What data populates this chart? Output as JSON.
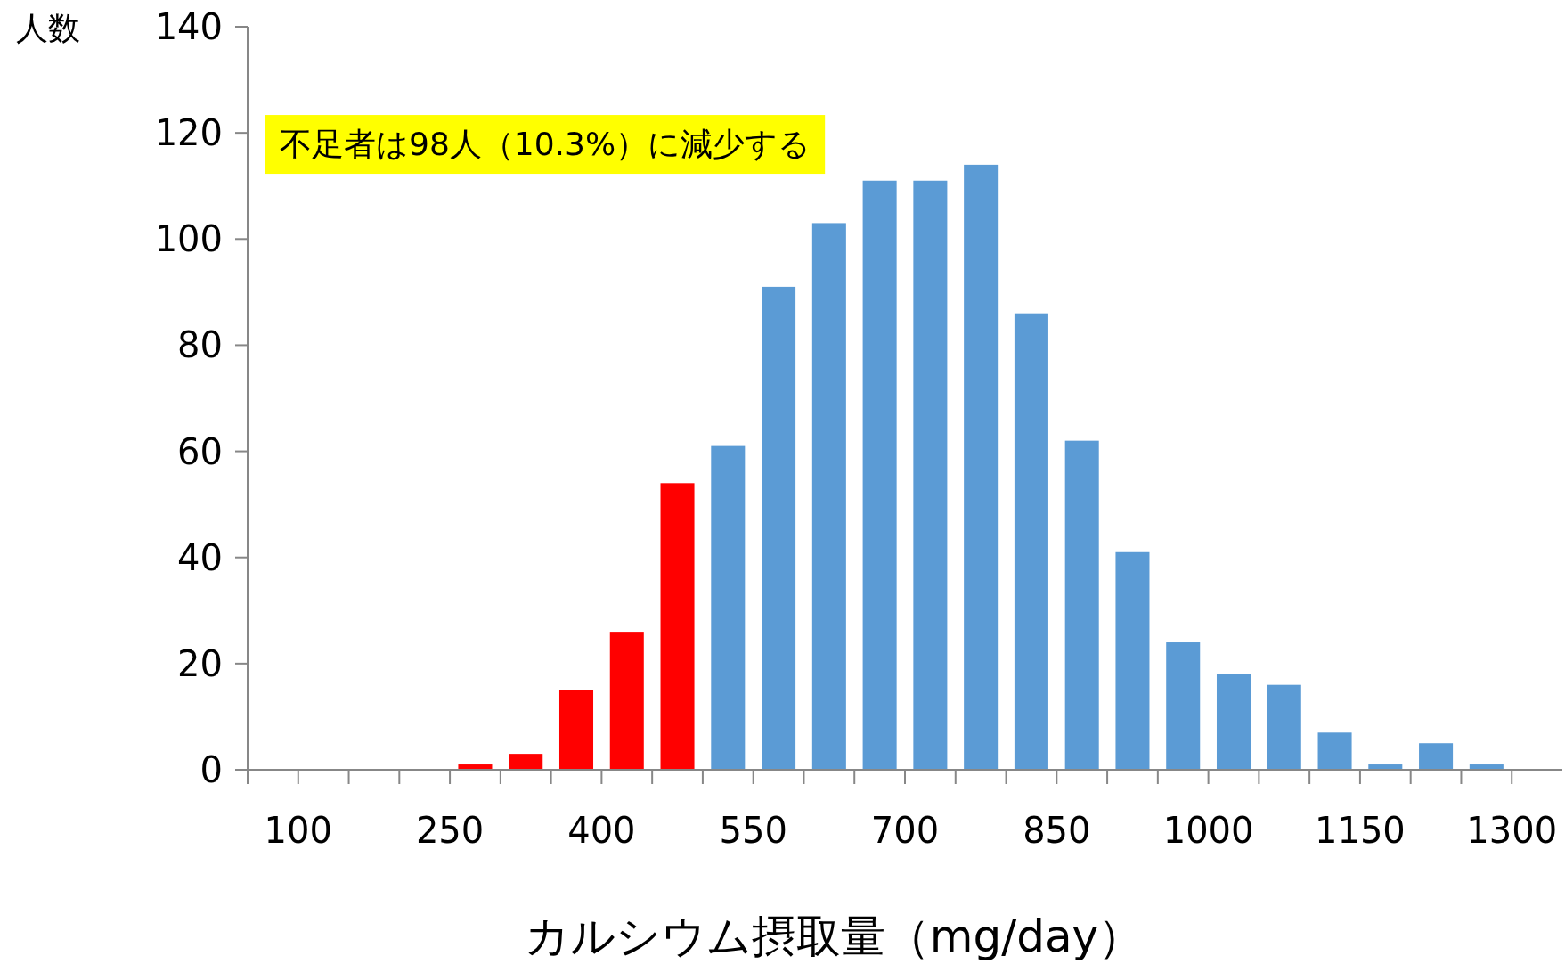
{
  "chart_data": {
    "type": "histogram",
    "xlabel": "カルシウム摂取量（mg/day）",
    "ylabel": "人数",
    "annotations": [
      "不足者は98人（10.3%）に減少する"
    ],
    "bins": [
      50,
      100,
      150,
      200,
      250,
      300,
      350,
      400,
      450,
      500,
      550,
      600,
      650,
      700,
      750,
      800,
      850,
      900,
      950,
      1000,
      1050,
      1100,
      1150,
      1200,
      1250,
      1300
    ],
    "values": [
      0,
      0,
      0,
      0,
      1,
      3,
      15,
      26,
      54,
      61,
      91,
      103,
      111,
      111,
      114,
      86,
      62,
      41,
      24,
      18,
      16,
      7,
      1,
      5,
      1
    ],
    "colors": [
      "#ff0000",
      "#ff0000",
      "#ff0000",
      "#ff0000",
      "#ff0000",
      "#ff0000",
      "#ff0000",
      "#ff0000",
      "#ff0000",
      "#5b9bd5",
      "#5b9bd5",
      "#5b9bd5",
      "#5b9bd5",
      "#5b9bd5",
      "#5b9bd5",
      "#5b9bd5",
      "#5b9bd5",
      "#5b9bd5",
      "#5b9bd5",
      "#5b9bd5",
      "#5b9bd5",
      "#5b9bd5",
      "#5b9bd5",
      "#5b9bd5",
      "#5b9bd5"
    ],
    "xlim": [
      50,
      1350
    ],
    "xticks": [
      {
        "value": 50,
        "label": null
      },
      100,
      {
        "value": 150,
        "label": null
      },
      {
        "value": 200,
        "label": null
      },
      250,
      {
        "value": 300,
        "label": null
      },
      {
        "value": 350,
        "label": null
      },
      400,
      {
        "value": 450,
        "label": null
      },
      {
        "value": 500,
        "label": null
      },
      550,
      {
        "value": 600,
        "label": null
      },
      {
        "value": 650,
        "label": null
      },
      700,
      {
        "value": 750,
        "label": null
      },
      {
        "value": 800,
        "label": null
      },
      850,
      {
        "value": 900,
        "label": null
      },
      {
        "value": 950,
        "label": null
      },
      1000,
      {
        "value": 1050,
        "label": null
      },
      {
        "value": 1100,
        "label": null
      },
      1150,
      {
        "value": 1200,
        "label": null
      },
      {
        "value": 1250,
        "label": null
      },
      1300
    ],
    "ylim": [
      0,
      140
    ],
    "yticks": [
      0,
      20,
      40,
      60,
      80,
      100,
      120,
      140
    ]
  }
}
